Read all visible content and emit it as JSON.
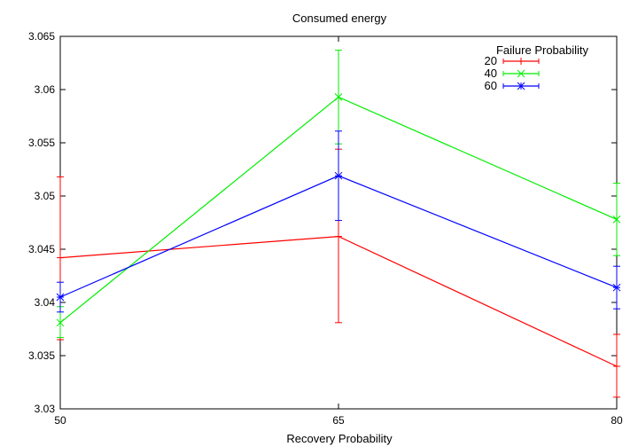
{
  "chart_data": {
    "type": "line",
    "title": "Consumed energy",
    "xlabel": "Recovery Probability",
    "ylabel": "",
    "x": [
      50,
      65,
      80
    ],
    "x_ticks": [
      "50",
      "65",
      "80"
    ],
    "xlim": [
      50,
      80
    ],
    "ylim": [
      3.03,
      3.065
    ],
    "y_ticks": [
      "3.03",
      "3.035",
      "3.04",
      "3.045",
      "3.05",
      "3.055",
      "3.06",
      "3.065"
    ],
    "y_tick_values": [
      3.03,
      3.035,
      3.04,
      3.045,
      3.05,
      3.055,
      3.06,
      3.065
    ],
    "grid": false,
    "legend": {
      "title": "Failure Probability",
      "placement": "top-right"
    },
    "series": [
      {
        "name": "20",
        "color": "#ff0000",
        "marker": "plus",
        "values": [
          3.0442,
          3.0462,
          3.034
        ],
        "err_low": [
          3.0365,
          3.0381,
          3.0311
        ],
        "err_high": [
          3.0518,
          3.0544,
          3.037
        ]
      },
      {
        "name": "40",
        "color": "#00ee00",
        "marker": "cross",
        "values": [
          3.0381,
          3.0593,
          3.0478
        ],
        "err_low": [
          3.0367,
          3.0549,
          3.0444
        ],
        "err_high": [
          3.0396,
          3.0637,
          3.0512
        ]
      },
      {
        "name": "60",
        "color": "#0000ff",
        "marker": "star",
        "values": [
          3.0405,
          3.0519,
          3.0414
        ],
        "err_low": [
          3.0391,
          3.0477,
          3.0394
        ],
        "err_high": [
          3.0419,
          3.0561,
          3.0434
        ]
      }
    ]
  }
}
